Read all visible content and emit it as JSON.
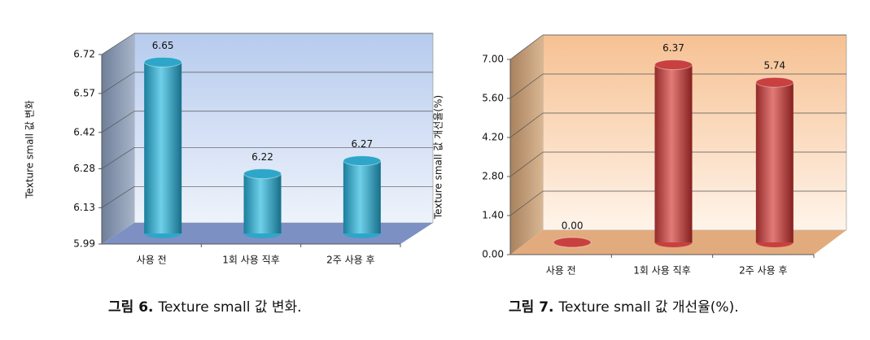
{
  "chart_data": [
    {
      "type": "bar",
      "y_label": "Texture small 값 변화",
      "categories": [
        "사용 전",
        "1회 사용 직후",
        "2주 사용 후"
      ],
      "values": [
        6.65,
        6.22,
        6.27
      ],
      "color": "#2ea6c9",
      "ylim": [
        5.99,
        6.72
      ],
      "yticks": [
        5.99,
        6.13,
        6.28,
        6.42,
        6.57,
        6.72
      ],
      "grid": true,
      "caption_label": "그림 6.",
      "caption": "Texture small 값 변화."
    },
    {
      "type": "bar",
      "y_label": "Texture small 값 개선율(%)",
      "categories": [
        "사용 전",
        "1회 사용 직후",
        "2주 사용 후"
      ],
      "values": [
        0,
        6.37,
        5.74
      ],
      "value_labels": [
        "0.00",
        "6.37",
        "5.74"
      ],
      "color": "#c8403f",
      "ylim": [
        0,
        7
      ],
      "yticks": [
        {
          "value": 0,
          "label": "0.00"
        },
        {
          "value": 1.4,
          "label": "1.40"
        },
        {
          "value": 2.8,
          "label": "2.80"
        },
        {
          "value": 4.2,
          "label": "4.20"
        },
        {
          "value": 5.6,
          "label": "5.60"
        },
        {
          "value": 7,
          "label": "7.00"
        }
      ],
      "grid": true,
      "caption_label": "그림 7.",
      "caption": "Texture small 값 개선율(%)."
    }
  ]
}
